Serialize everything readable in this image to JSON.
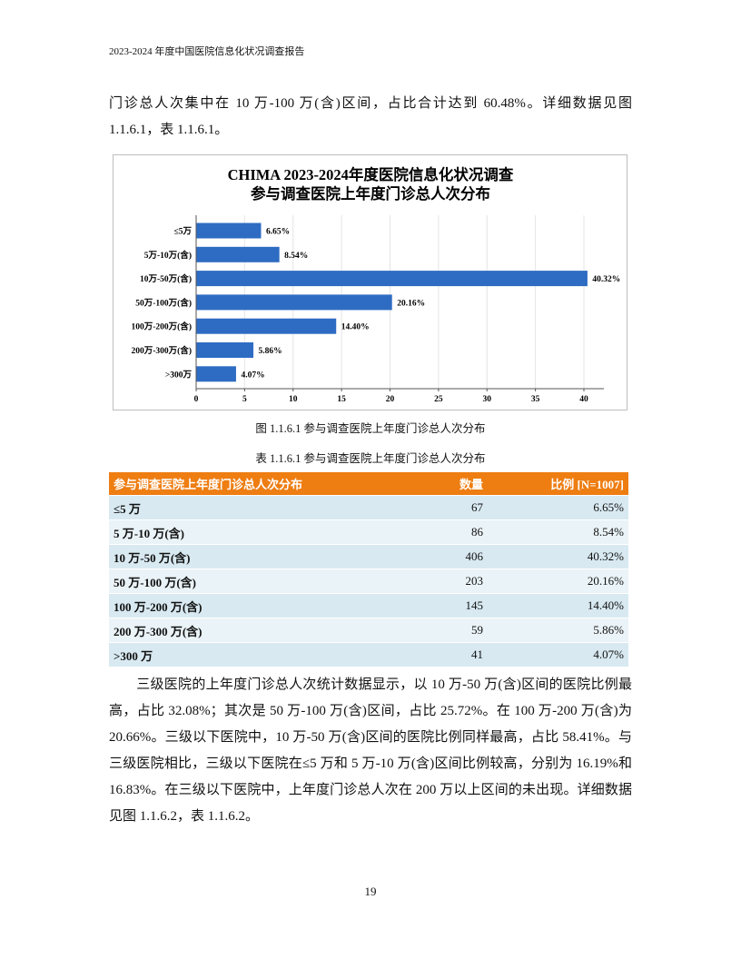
{
  "header": "2023-2024 年度中国医院信息化状况调查报告",
  "paragraph1": "门诊总人次集中在 10 万-100 万(含)区间，占比合计达到 60.48%。详细数据见图 1.1.6.1，表 1.1.6.1。",
  "chart_data": {
    "type": "bar",
    "orientation": "horizontal",
    "title": [
      "CHIMA 2023-2024年度医院信息化状况调查",
      "参与调查医院上年度门诊总人次分布"
    ],
    "categories": [
      "≤5万",
      "5万-10万(含)",
      "10万-50万(含)",
      "50万-100万(含)",
      "100万-200万(含)",
      "200万-300万(含)",
      ">300万"
    ],
    "values": [
      6.65,
      8.54,
      40.32,
      20.16,
      14.4,
      5.86,
      4.07
    ],
    "data_labels": [
      "6.65%",
      "8.54%",
      "40.32%",
      "20.16%",
      "14.40%",
      "5.86%",
      "4.07%"
    ],
    "xlim": [
      0,
      42
    ],
    "xticks": [
      0,
      5,
      10,
      15,
      20,
      25,
      30,
      35,
      40
    ],
    "grid": "vertical",
    "bar_color": "#2E6CC3",
    "xlabel": "",
    "ylabel": ""
  },
  "figure_caption": "图 1.1.6.1  参与调查医院上年度门诊总人次分布",
  "table_caption": "表 1.1.6.1  参与调查医院上年度门诊总人次分布",
  "table": {
    "header_color": "#EE7D12",
    "columns": [
      "参与调查医院上年度门诊总人次分布",
      "数量",
      "比例 [N=1007]"
    ],
    "rows": [
      [
        "≤5 万",
        "67",
        "6.65%"
      ],
      [
        "5 万-10 万(含)",
        "86",
        "8.54%"
      ],
      [
        "10 万-50 万(含)",
        "406",
        "40.32%"
      ],
      [
        "50 万-100 万(含)",
        "203",
        "20.16%"
      ],
      [
        "100 万-200 万(含)",
        "145",
        "14.40%"
      ],
      [
        "200 万-300 万(含)",
        "59",
        "5.86%"
      ],
      [
        ">300 万",
        "41",
        "4.07%"
      ]
    ]
  },
  "paragraph2": "三级医院的上年度门诊总人次统计数据显示，以 10 万-50 万(含)区间的医院比例最高，占比 32.08%；其次是 50 万-100 万(含)区间，占比 25.72%。在 100 万-200 万(含)为 20.66%。三级以下医院中，10 万-50 万(含)区间的医院比例同样最高，占比 58.41%。与三级医院相比，三级以下医院在≤5 万和 5 万-10 万(含)区间比例较高，分别为 16.19%和 16.83%。在三级以下医院中，上年度门诊总人次在 200 万以上区间的未出现。详细数据见图 1.1.6.2，表 1.1.6.2。",
  "page_number": "19"
}
